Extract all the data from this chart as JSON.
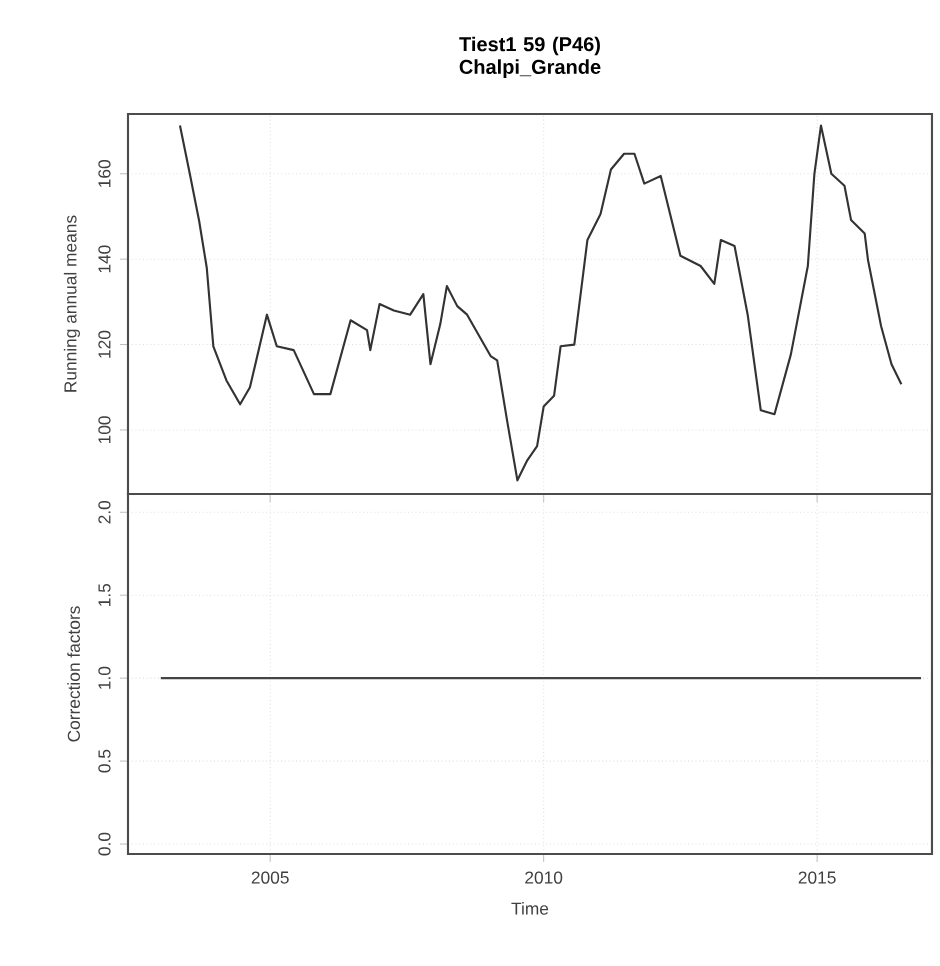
{
  "chart_data": [
    {
      "type": "line",
      "title": "Tiest1 59 (P46) Chalpi_Grande",
      "ylabel": "Running annual means",
      "x": [
        2003.35,
        2003.53,
        2003.7,
        2003.84,
        2003.96,
        2004.2,
        2004.45,
        2004.63,
        2004.94,
        2005.12,
        2005.43,
        2005.8,
        2006.1,
        2006.47,
        2006.77,
        2006.83,
        2007.0,
        2007.26,
        2007.56,
        2007.8,
        2007.93,
        2008.11,
        2008.23,
        2008.42,
        2008.6,
        2009.03,
        2009.15,
        2009.33,
        2009.52,
        2009.7,
        2009.88,
        2010.0,
        2010.19,
        2010.31,
        2010.56,
        2010.8,
        2011.04,
        2011.23,
        2011.47,
        2011.66,
        2011.84,
        2012.14,
        2012.5,
        2012.87,
        2013.12,
        2013.24,
        2013.49,
        2013.73,
        2013.97,
        2014.22,
        2014.52,
        2014.83,
        2014.95,
        2015.07,
        2015.26,
        2015.5,
        2015.62,
        2015.87,
        2015.93,
        2016.17,
        2016.36,
        2016.54
      ],
      "series": [
        {
          "color": "#333333",
          "values": [
            171.3,
            160,
            149,
            138,
            119.6,
            111.6,
            106,
            110,
            127,
            119.6,
            118.7,
            108.4,
            108.4,
            125.7,
            123.4,
            118.7,
            129.5,
            128,
            127,
            131.8,
            115.4,
            124.8,
            133.7,
            129,
            127,
            117.3,
            116.3,
            102.3,
            88.2,
            92.9,
            96.2,
            105.5,
            108,
            119.6,
            120,
            144.5,
            150.6,
            161,
            164.7,
            164.7,
            157.7,
            159.5,
            140.8,
            138.4,
            134.2,
            144.5,
            143.1,
            127,
            104.6,
            103.7,
            117.7,
            138.4,
            160,
            171.3,
            160,
            157.2,
            149.2,
            146,
            139.8,
            124.3,
            115.4,
            110.7
          ]
        }
      ],
      "xlim": [
        2002.4,
        2017.1
      ],
      "xticks": [
        2005,
        2010,
        2015
      ],
      "ylim": [
        85,
        174
      ],
      "yticks": [
        100,
        120,
        140,
        160
      ],
      "grid": true,
      "tick_labels": "y"
    },
    {
      "type": "line",
      "xlabel": "Time",
      "ylabel": "Correction factors",
      "x": [
        2003.0,
        2016.9
      ],
      "series": [
        {
          "color": "#444444",
          "values": [
            1.0,
            1.0
          ]
        }
      ],
      "xlim": [
        2002.4,
        2017.1
      ],
      "xticks": [
        2005,
        2010,
        2015
      ],
      "ylim": [
        -0.06,
        2.11
      ],
      "yticks": [
        {
          "value": 0,
          "label": "0.0"
        },
        {
          "value": 0.5,
          "label": "0.5"
        },
        {
          "value": 1,
          "label": "1.0"
        },
        {
          "value": 1.5,
          "label": "1.5"
        },
        {
          "value": 2,
          "label": "2.0"
        }
      ],
      "grid": true
    }
  ]
}
